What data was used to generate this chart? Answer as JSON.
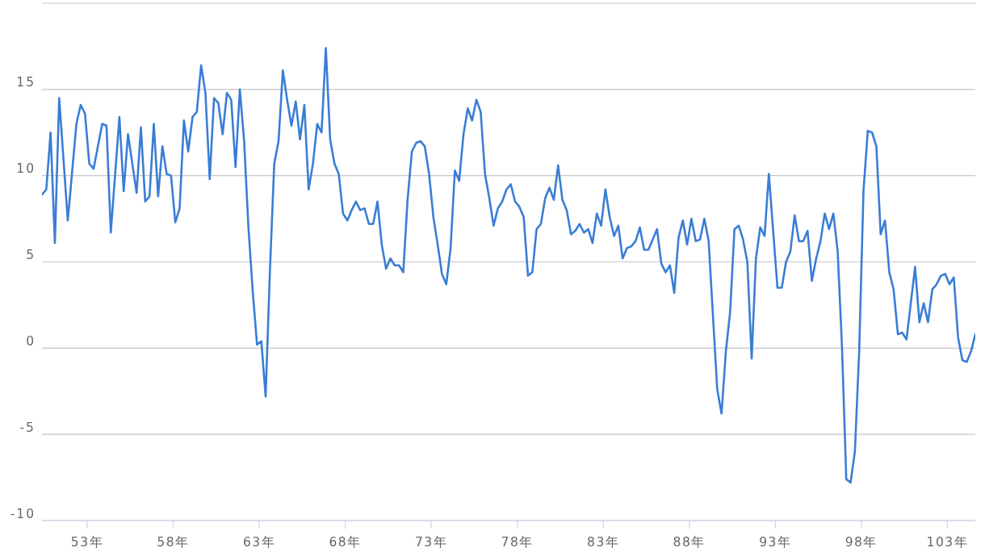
{
  "chart_data": {
    "type": "line",
    "color": "#3a7dd6",
    "line_style": "solid",
    "grid": "y",
    "x": [
      50.375,
      50.625,
      50.875,
      51.125,
      51.375,
      51.875,
      52.375,
      52.625,
      52.875,
      53.125,
      53.375,
      53.875,
      54.125,
      54.375,
      54.875,
      55.125,
      55.375,
      55.875,
      56.125,
      56.375,
      56.625,
      56.875,
      57.125,
      57.375,
      57.625,
      57.875,
      58.125,
      58.375,
      58.625,
      58.875,
      59.125,
      59.375,
      59.625,
      59.875,
      60.125,
      60.375,
      60.625,
      60.875,
      61.125,
      61.375,
      61.625,
      61.875,
      62.125,
      62.375,
      62.625,
      62.875,
      63.125,
      63.375,
      63.625,
      63.875,
      64.125,
      64.375,
      64.625,
      64.875,
      65.125,
      65.375,
      65.625,
      65.875,
      66.125,
      66.375,
      66.625,
      66.875,
      67.125,
      67.375,
      67.625,
      67.875,
      68.125,
      68.375,
      68.625,
      68.875,
      69.125,
      69.375,
      69.625,
      69.875,
      70.125,
      70.375,
      70.625,
      70.875,
      71.125,
      71.375,
      71.625,
      71.875,
      72.125,
      72.375,
      72.625,
      72.875,
      73.125,
      73.375,
      73.625,
      73.875,
      74.125,
      74.375,
      74.625,
      74.875,
      75.125,
      75.375,
      75.625,
      75.875,
      76.125,
      76.375,
      76.625,
      76.875,
      77.125,
      77.375,
      77.625,
      77.875,
      78.125,
      78.375,
      78.625,
      78.875,
      79.125,
      79.375,
      79.625,
      79.875,
      80.125,
      80.375,
      80.625,
      80.875,
      81.125,
      81.375,
      81.625,
      81.875,
      82.125,
      82.375,
      82.625,
      82.875,
      83.125,
      83.375,
      83.625,
      83.875,
      84.125,
      84.375,
      84.625,
      84.875,
      85.125,
      85.375,
      85.625,
      85.875,
      86.125,
      86.375,
      86.625,
      86.875,
      87.125,
      87.375,
      87.625,
      87.875,
      88.125,
      88.375,
      88.625,
      88.875,
      89.125,
      89.375,
      89.625,
      89.875,
      90.125,
      90.375,
      90.625,
      90.875,
      91.125,
      91.375,
      91.625,
      91.875,
      92.125,
      92.375,
      92.625,
      92.875,
      93.125,
      93.375,
      93.625,
      93.875,
      94.125,
      94.375,
      94.625,
      94.875,
      95.125,
      95.375,
      95.625,
      95.875,
      96.125,
      96.375,
      96.625,
      96.875,
      97.125,
      97.375,
      97.625,
      97.875,
      98.125,
      98.375,
      98.625,
      98.875,
      99.125,
      99.375,
      99.625,
      99.875,
      100.125,
      100.375,
      100.625,
      101.125,
      101.375,
      101.625,
      101.875,
      102.125,
      102.375,
      102.625,
      102.875,
      103.125,
      103.375,
      103.625,
      103.875,
      104.125,
      104.375,
      104.625
    ],
    "values": [
      8.9,
      9.2,
      12.5,
      6.1,
      14.5,
      7.4,
      13.0,
      14.1,
      13.6,
      10.7,
      10.4,
      13.0,
      12.9,
      6.7,
      13.4,
      9.1,
      12.4,
      9.0,
      12.8,
      8.5,
      8.8,
      13.0,
      8.8,
      11.7,
      10.1,
      10.0,
      7.3,
      8.1,
      13.2,
      11.4,
      13.4,
      13.7,
      16.4,
      14.8,
      9.8,
      14.5,
      14.2,
      12.4,
      14.8,
      14.4,
      10.5,
      15.0,
      12.0,
      7.0,
      3.3,
      0.2,
      0.4,
      -2.8,
      4.5,
      10.7,
      12.0,
      16.1,
      14.4,
      12.9,
      14.3,
      12.1,
      14.1,
      9.2,
      10.7,
      13.0,
      12.5,
      17.4,
      12.1,
      10.7,
      10.1,
      7.8,
      7.4,
      8.0,
      8.5,
      8.0,
      8.1,
      7.2,
      7.2,
      8.5,
      6.0,
      4.6,
      5.2,
      4.8,
      4.8,
      4.4,
      8.6,
      11.4,
      11.9,
      12.0,
      11.7,
      10.1,
      7.6,
      6.0,
      4.3,
      3.7,
      5.8,
      10.3,
      9.7,
      12.4,
      13.9,
      13.2,
      14.4,
      13.7,
      10.1,
      8.7,
      7.1,
      8.1,
      8.5,
      9.2,
      9.5,
      8.5,
      8.2,
      7.6,
      4.2,
      4.4,
      6.9,
      7.2,
      8.7,
      9.3,
      8.6,
      10.6,
      8.6,
      8.0,
      6.6,
      6.8,
      7.2,
      6.7,
      6.9,
      6.1,
      7.8,
      7.1,
      9.2,
      7.6,
      6.5,
      7.1,
      5.2,
      5.8,
      5.9,
      6.2,
      7.0,
      5.7,
      5.7,
      6.3,
      6.9,
      4.9,
      4.4,
      4.8,
      3.2,
      6.4,
      7.4,
      6.0,
      7.5,
      6.2,
      6.3,
      7.5,
      6.2,
      1.9,
      -2.4,
      -3.8,
      -0.2,
      2.1,
      6.9,
      7.1,
      6.3,
      5.0,
      -0.6,
      5.2,
      7.0,
      6.5,
      10.1,
      6.8,
      3.5,
      3.5,
      5.0,
      5.6,
      7.7,
      6.2,
      6.2,
      6.8,
      3.9,
      5.2,
      6.2,
      7.8,
      6.9,
      7.8,
      5.6,
      0.1,
      -7.6,
      -7.8,
      -6.0,
      -0.2,
      9.1,
      12.6,
      12.5,
      11.7,
      6.6,
      7.4,
      4.4,
      3.4,
      0.8,
      0.9,
      0.5,
      4.7,
      1.5,
      2.6,
      1.5,
      3.4,
      3.7,
      4.2,
      4.3,
      3.7,
      4.1,
      0.6,
      -0.7,
      -0.8,
      -0.2,
      0.8
    ],
    "xlim": [
      50.375,
      104.625
    ],
    "xticks": [
      {
        "value": 53,
        "label": "53年"
      },
      {
        "value": 58,
        "label": "58年"
      },
      {
        "value": 63,
        "label": "63年"
      },
      {
        "value": 68,
        "label": "68年"
      },
      {
        "value": 73,
        "label": "73年"
      },
      {
        "value": 78,
        "label": "78年"
      },
      {
        "value": 83,
        "label": "83年"
      },
      {
        "value": 88,
        "label": "88年"
      },
      {
        "value": 93,
        "label": "93年"
      },
      {
        "value": 98,
        "label": "98年"
      },
      {
        "value": 103,
        "label": "103年"
      }
    ],
    "ylim": [
      -10,
      20
    ],
    "yticks": [
      -10,
      -5,
      0,
      5,
      10,
      15,
      {
        "value": 20,
        "label": null
      }
    ]
  }
}
